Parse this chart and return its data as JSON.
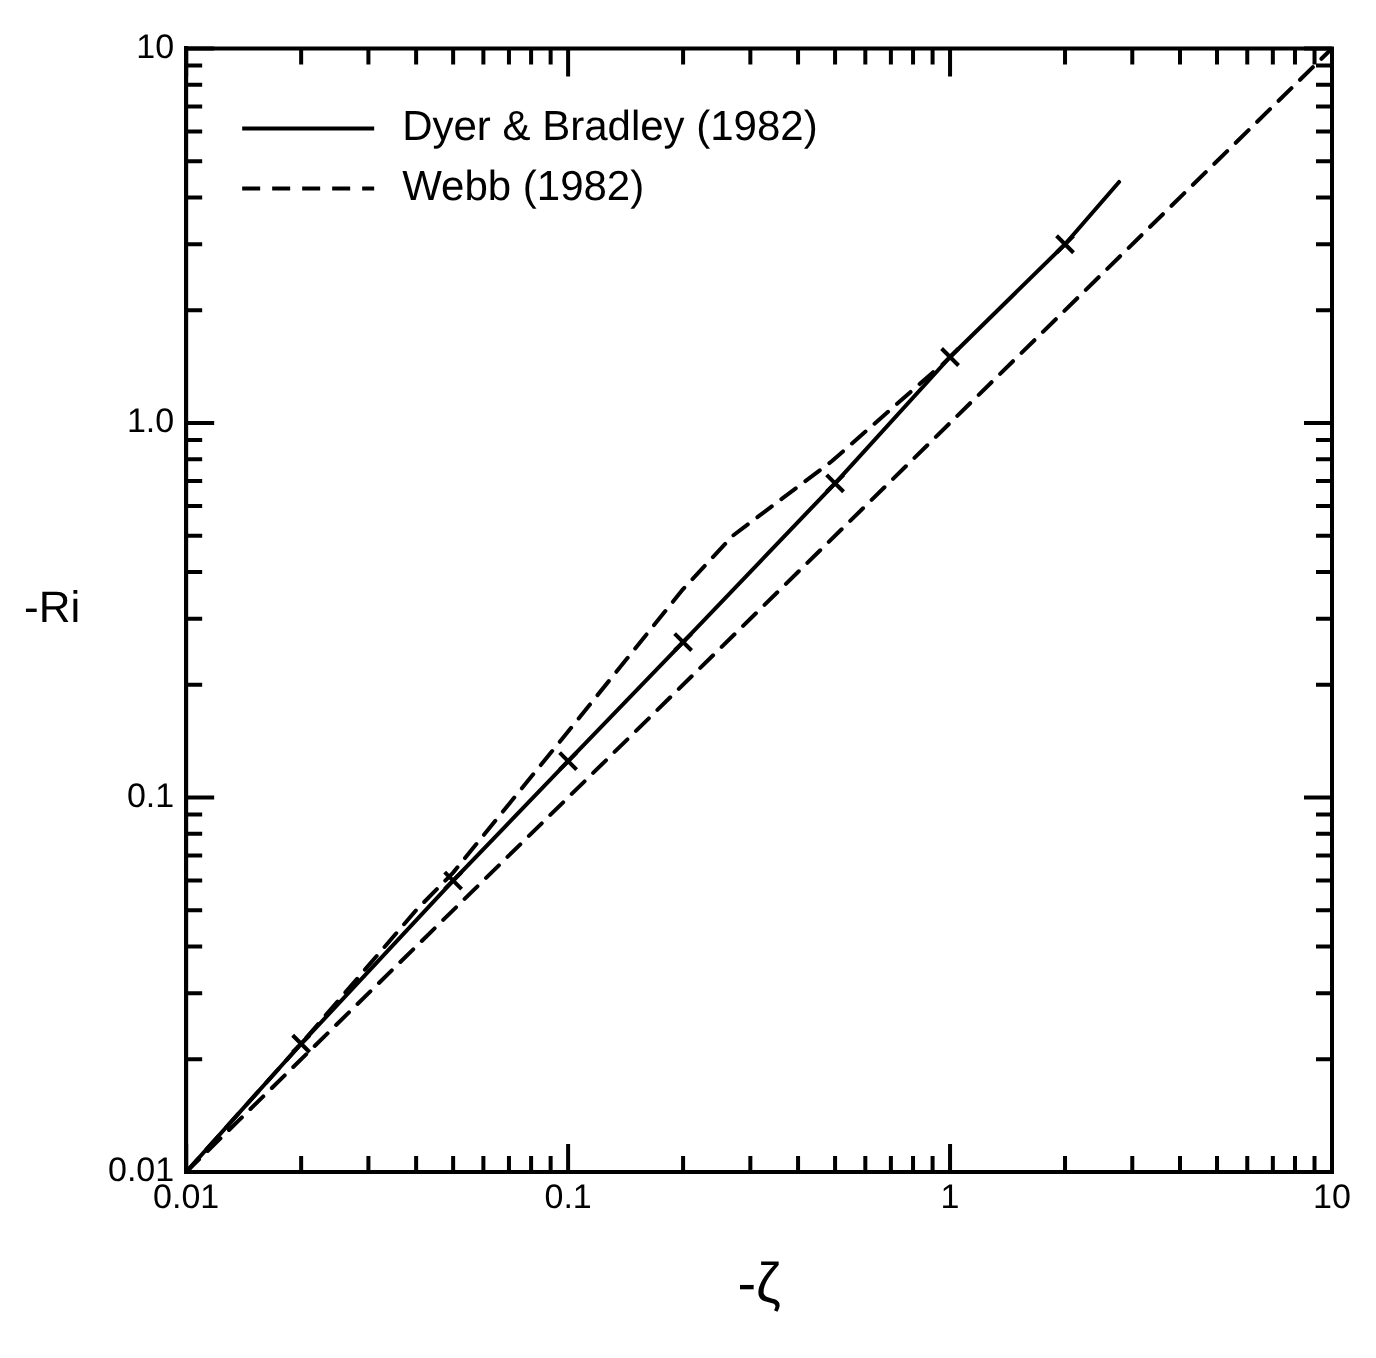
{
  "chart_data": {
    "type": "line",
    "xlabel": "-ζ",
    "ylabel": "-Ri",
    "log": "xy",
    "grid": false,
    "legend": "top left",
    "xlim": [
      0.01,
      10
    ],
    "ylim": [
      0.01,
      10
    ],
    "xticks": [
      0.01,
      {
        "value": 0.02,
        "label": null
      },
      {
        "value": 0.03,
        "label": null
      },
      {
        "value": 0.04,
        "label": null
      },
      {
        "value": 0.05,
        "label": null
      },
      {
        "value": 0.06,
        "label": null
      },
      {
        "value": 0.07,
        "label": null
      },
      {
        "value": 0.08,
        "label": null
      },
      {
        "value": 0.09,
        "label": null
      },
      0.1,
      {
        "value": 0.2,
        "label": null
      },
      {
        "value": 0.3,
        "label": null
      },
      {
        "value": 0.4,
        "label": null
      },
      {
        "value": 0.5,
        "label": null
      },
      {
        "value": 0.6,
        "label": null
      },
      {
        "value": 0.7,
        "label": null
      },
      {
        "value": 0.8,
        "label": null
      },
      {
        "value": 0.9,
        "label": null
      },
      1,
      {
        "value": 2,
        "label": null
      },
      {
        "value": 3,
        "label": null
      },
      {
        "value": 4,
        "label": null
      },
      {
        "value": 5,
        "label": null
      },
      {
        "value": 6,
        "label": null
      },
      {
        "value": 7,
        "label": null
      },
      {
        "value": 8,
        "label": null
      },
      {
        "value": 9,
        "label": null
      },
      10
    ],
    "yticks": [
      0.01,
      {
        "value": 0.02,
        "label": null
      },
      {
        "value": 0.03,
        "label": null
      },
      {
        "value": 0.04,
        "label": null
      },
      {
        "value": 0.05,
        "label": null
      },
      {
        "value": 0.06,
        "label": null
      },
      {
        "value": 0.07,
        "label": null
      },
      {
        "value": 0.08,
        "label": null
      },
      {
        "value": 0.09,
        "label": null
      },
      0.1,
      {
        "value": 0.2,
        "label": null
      },
      {
        "value": 0.3,
        "label": null
      },
      {
        "value": 0.4,
        "label": null
      },
      {
        "value": 0.5,
        "label": null
      },
      {
        "value": 0.6,
        "label": null
      },
      {
        "value": 0.7,
        "label": null
      },
      {
        "value": 0.8,
        "label": null
      },
      {
        "value": 0.9,
        "label": null
      },
      {
        "value": 1,
        "label": "1.0"
      },
      {
        "value": 2,
        "label": null
      },
      {
        "value": 3,
        "label": null
      },
      {
        "value": 4,
        "label": null
      },
      {
        "value": 5,
        "label": null
      },
      {
        "value": 6,
        "label": null
      },
      {
        "value": 7,
        "label": null
      },
      {
        "value": 8,
        "label": null
      },
      {
        "value": 9,
        "label": null
      },
      10
    ],
    "series": [
      {
        "name": "Dyer & Bradley (1982)",
        "color": "#000000",
        "line_style": "solid",
        "marker": "none",
        "x": [
          0.01,
          0.02,
          0.05,
          0.1,
          0.2,
          0.5,
          1,
          2,
          2.77
        ],
        "values": [
          0.01,
          0.022,
          0.06,
          0.125,
          0.26,
          0.69,
          1.5,
          3.0,
          4.4
        ]
      },
      {
        "name": "Webb (1982)",
        "color": "#000000",
        "line_style": "dashed",
        "marker": "none",
        "x": [
          0.01,
          0.02,
          0.04,
          0.05,
          0.1,
          0.2,
          0.27,
          0.49,
          0.95
        ],
        "values": [
          0.01,
          0.022,
          0.05,
          0.063,
          0.15,
          0.36,
          0.5,
          0.79,
          1.43
        ]
      },
      {
        "color": "#000000",
        "line_style": "dashed",
        "marker": "none",
        "x": [
          0.01,
          10
        ],
        "values": [
          0.01,
          10
        ]
      },
      {
        "type": "scatter",
        "color": "#000000",
        "marker": "cross",
        "x": [
          0.02,
          0.05,
          0.1,
          0.2,
          0.5,
          1,
          2
        ],
        "values": [
          0.022,
          0.06,
          0.125,
          0.26,
          0.69,
          1.5,
          3.0
        ]
      }
    ]
  }
}
